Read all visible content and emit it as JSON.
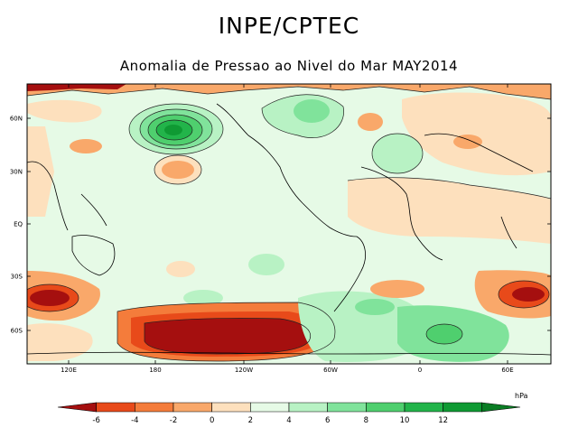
{
  "header": {
    "title": "INPE/CPTEC",
    "subtitle": "Anomalia de Pressao ao Nivel do Mar MAY2014"
  },
  "map": {
    "lat_ticks": [
      "60N",
      "30N",
      "EQ",
      "30S",
      "60S"
    ],
    "lon_ticks": [
      "120E",
      "180",
      "120W",
      "60W",
      "0",
      "60E"
    ],
    "variable": "Sea level pressure anomaly",
    "month": "MAY2014"
  },
  "legend": {
    "units": "hPa",
    "ticks": [
      "-6",
      "-4",
      "-2",
      "0",
      "2",
      "4",
      "6",
      "8",
      "10",
      "12"
    ],
    "colors": [
      "#a50f0f",
      "#e84a1a",
      "#f47c3b",
      "#f9a86a",
      "#fde0bd",
      "#e6fae6",
      "#b8f2c4",
      "#80e39b",
      "#4fcf6e",
      "#22b44a",
      "#0f9a33",
      "#0a7d24"
    ]
  }
}
